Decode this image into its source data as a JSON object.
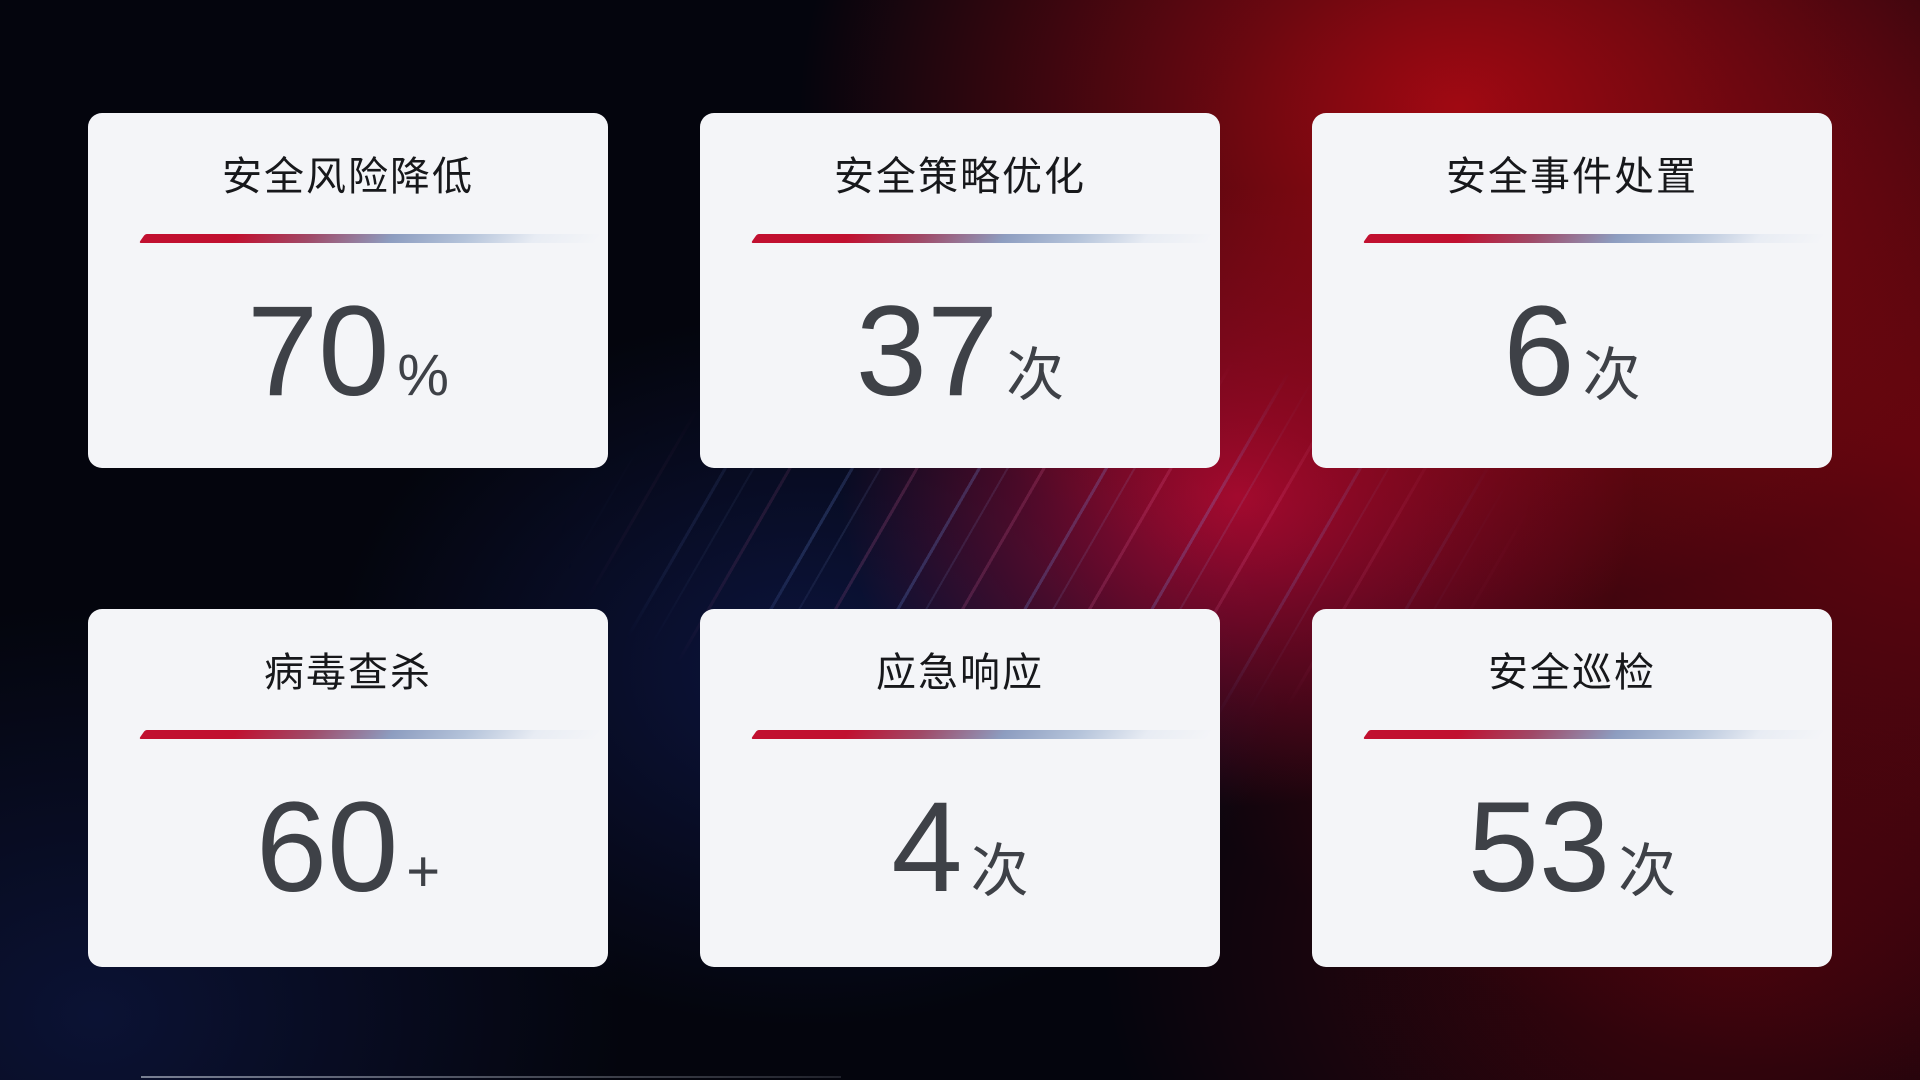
{
  "page": {
    "background_base": "#04050d",
    "accent_red": "#c11030",
    "accent_blue_gray": "#8d9dc0",
    "card_bg": "#f4f5f8",
    "title_color": "#17181b",
    "value_color": "#3e4147"
  },
  "cards": [
    {
      "title": "安全风险降低",
      "value": "70",
      "unit": "%"
    },
    {
      "title": "安全策略优化",
      "value": "37",
      "unit": "次"
    },
    {
      "title": "安全事件处置",
      "value": "6",
      "unit": "次"
    },
    {
      "title": "病毒查杀",
      "value": "60",
      "unit": "+"
    },
    {
      "title": "应急响应",
      "value": "4",
      "unit": "次"
    },
    {
      "title": "安全巡检",
      "value": "53",
      "unit": "次"
    }
  ]
}
